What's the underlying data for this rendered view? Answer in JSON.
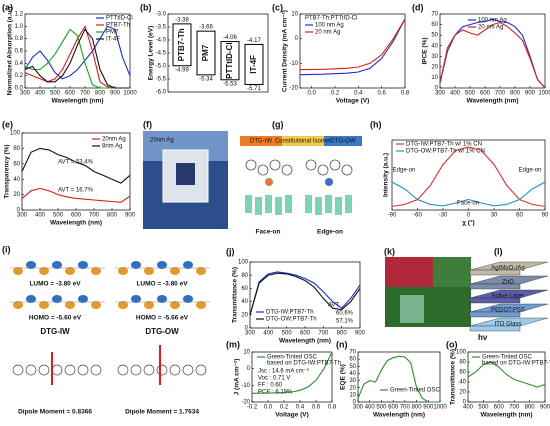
{
  "panels": [
    {
      "label": "(a)",
      "type": "line",
      "xlabel": "Wavelength (nm)",
      "ylabel": "Normalized Absorption (a.u.)",
      "xlim": [
        300,
        1000
      ],
      "ylim": [
        0,
        1.2
      ],
      "xticks": [
        300,
        400,
        500,
        600,
        700,
        800,
        900,
        1000
      ],
      "yticks": [
        {
          "value": 0,
          "label": "0.0"
        },
        0.2,
        0.4,
        0.6,
        0.8,
        {
          "value": 1,
          "label": "1.0"
        },
        1.2
      ],
      "x": [
        300,
        350,
        400,
        450,
        500,
        550,
        600,
        650,
        700,
        750,
        800,
        850,
        900,
        950,
        1000
      ],
      "series": [
        {
          "name": "PTTtID-Cl",
          "color": "#1a2bd6",
          "values": [
            0.3,
            0.5,
            0.6,
            0.45,
            0.25,
            0.15,
            0.2,
            0.3,
            0.45,
            0.6,
            0.8,
            1.0,
            0.95,
            0.5,
            0.2
          ]
        },
        {
          "name": "PTB7-Th",
          "color": "#e01b1b",
          "values": [
            0.25,
            0.2,
            0.15,
            0.1,
            0.15,
            0.3,
            0.55,
            0.8,
            1.0,
            0.6,
            0.1,
            0.02,
            0,
            0,
            0
          ]
        },
        {
          "name": "PM7",
          "color": "#1fa31f",
          "values": [
            0.35,
            0.3,
            0.3,
            0.4,
            0.55,
            0.75,
            0.95,
            0.85,
            0.4,
            0.05,
            0,
            0,
            0,
            0,
            0
          ]
        },
        {
          "name": "IT-4F",
          "color": "#111111",
          "values": [
            0.3,
            0.35,
            0.2,
            0.1,
            0.1,
            0.2,
            0.4,
            0.7,
            0.95,
            0.8,
            0.3,
            0.05,
            0,
            0,
            0
          ]
        }
      ]
    },
    {
      "label": "(b)",
      "type": "energy",
      "ylabel": "Energy Level (eV)",
      "ylim": [
        -6,
        -3
      ],
      "yticks": [
        {
          "value": -6,
          "label": "-6.0"
        },
        -5.5,
        {
          "value": -5,
          "label": "-5.0"
        },
        -4.5,
        {
          "value": -4,
          "label": "-4.0"
        },
        -3.5,
        {
          "value": -3,
          "label": "-3.0"
        }
      ],
      "materials": [
        {
          "name": "PTB7-Th",
          "color": "#111111",
          "lumo": -3.38,
          "homo": -4.99
        },
        {
          "name": "PM7",
          "color": "#1fa31f",
          "lumo": -3.66,
          "homo": -5.34
        },
        {
          "name": "PTTtID-Cl",
          "color": "#1a2bd6",
          "lumo": -4.06,
          "homo": -5.53
        },
        {
          "name": "IT-4F",
          "color": "#e01b1b",
          "lumo": -4.17,
          "homo": -5.71
        }
      ]
    },
    {
      "label": "(c)",
      "type": "line",
      "xlabel": "Voltage (V)",
      "ylabel": "Current Density (mA cm⁻²)",
      "xlim": [
        -0.1,
        0.8
      ],
      "ylim": [
        -20,
        10
      ],
      "xticks": [
        {
          "value": 0,
          "label": "0.0"
        },
        0.2,
        0.4,
        0.6,
        0.8
      ],
      "yticks": [
        -20,
        -10,
        0,
        10
      ],
      "legend_title": "PTB7-Th:PTTtID-Cl",
      "x": [
        -0.1,
        0,
        0.1,
        0.2,
        0.3,
        0.4,
        0.5,
        0.6,
        0.7,
        0.8
      ],
      "series": [
        {
          "name": "100 nm Ag",
          "color": "#1a2bd6",
          "values": [
            -14.6,
            -14.5,
            -14.4,
            -14.2,
            -14,
            -13.5,
            -12,
            -8,
            -1,
            8
          ]
        },
        {
          "name": "20 nm Ag",
          "color": "#e01b1b",
          "values": [
            -12.6,
            -12.5,
            -12.4,
            -12.2,
            -12,
            -11.5,
            -10,
            -6.5,
            0,
            8
          ]
        }
      ]
    },
    {
      "label": "(d)",
      "type": "line",
      "xlabel": "Wavelength (nm)",
      "ylabel": "IPCE (%)",
      "xlim": [
        300,
        1000
      ],
      "ylim": [
        0,
        70
      ],
      "xticks": [
        300,
        400,
        500,
        600,
        700,
        800,
        900,
        1000
      ],
      "yticks": [
        0,
        10,
        20,
        30,
        40,
        50,
        60,
        70
      ],
      "x": [
        300,
        350,
        400,
        450,
        500,
        550,
        600,
        650,
        700,
        750,
        800,
        850,
        900,
        950,
        1000
      ],
      "series": [
        {
          "name": "100 nm Ag",
          "color": "#1a2bd6",
          "values": [
            5,
            35,
            50,
            58,
            60,
            62,
            63,
            65,
            63,
            62,
            58,
            50,
            30,
            8,
            0
          ]
        },
        {
          "name": "20 nm Ag",
          "color": "#e01b1b",
          "values": [
            5,
            38,
            50,
            55,
            52,
            50,
            55,
            60,
            62,
            58,
            52,
            45,
            28,
            8,
            0
          ]
        }
      ]
    },
    {
      "label": "(e)",
      "type": "line",
      "xlabel": "Wavelength (nm)",
      "ylabel": "Transparency (%)",
      "xlim": [
        300,
        900
      ],
      "ylim": [
        0,
        100
      ],
      "xticks": [
        300,
        400,
        500,
        600,
        700,
        800,
        900
      ],
      "yticks": [
        0,
        20,
        40,
        60,
        80,
        100
      ],
      "x": [
        300,
        350,
        400,
        450,
        500,
        550,
        600,
        650,
        700,
        750,
        800,
        850,
        900
      ],
      "series": [
        {
          "name": "20nm Ag",
          "color": "#e01b1b",
          "values": [
            15,
            25,
            28,
            25,
            20,
            17,
            15,
            14,
            13,
            12,
            11,
            10,
            18
          ]
        },
        {
          "name": "8nm Ag",
          "color": "#111111",
          "values": [
            50,
            75,
            80,
            78,
            72,
            68,
            62,
            58,
            50,
            45,
            40,
            35,
            45
          ]
        }
      ],
      "annotations": [
        "AVT = 53.4%",
        "AVT = 16.7%"
      ]
    },
    {
      "label": "(f)",
      "type": "photo",
      "caption": "20nm Ag"
    },
    {
      "label": "(g)",
      "type": "diagram",
      "left": "DTG-IW",
      "middle": "Constitutional Isomer",
      "right": "DTG-OW",
      "left_bottom": "Face-on",
      "right_bottom": "Edge-on"
    },
    {
      "label": "(h)",
      "type": "line",
      "xlabel": "χ (°)",
      "ylabel": "Intensity (a.u.)",
      "xlim": [
        -90,
        90
      ],
      "ylim": [
        0,
        100
      ],
      "xticks": [
        -90,
        -60,
        -30,
        0,
        30,
        60,
        90
      ],
      "x": [
        -90,
        -75,
        -60,
        -45,
        -30,
        -15,
        0,
        15,
        30,
        45,
        60,
        75,
        90
      ],
      "series": [
        {
          "name": "DTG-IW:PTB7-Th w/ 1% CN",
          "color": "#e0303a",
          "values": [
            5,
            8,
            15,
            35,
            65,
            85,
            90,
            85,
            65,
            35,
            15,
            8,
            5
          ]
        },
        {
          "name": "DTG-OW:PTB7-Th w/ 1% CN",
          "color": "#2a8fc8",
          "values": [
            40,
            30,
            15,
            8,
            6,
            10,
            15,
            10,
            6,
            8,
            15,
            30,
            40
          ]
        }
      ],
      "annotations": [
        "Edge-on",
        "Face-on",
        "Edge-on"
      ]
    },
    {
      "label": "(i)",
      "type": "orbitals",
      "lumo_left": "LUMO = -3.80 eV",
      "lumo_right": "LUMO = -3.80 eV",
      "homo_left": "HOMO = -5.60 eV",
      "homo_right": "HOMO = -5.66 eV",
      "name_left": "DTG-IW",
      "name_right": "DTG-OW",
      "dipole_left": "Dipole Moment = 0.8366",
      "dipole_right": "Dipole Moment = 1.7634"
    },
    {
      "label": "(j)",
      "type": "line",
      "xlabel": "Wavelength (nm)",
      "ylabel": "Transmittance (%)",
      "xlim": [
        300,
        900
      ],
      "ylim": [
        0,
        100
      ],
      "xticks": [
        300,
        400,
        500,
        600,
        700,
        800,
        900
      ],
      "yticks": [
        0,
        20,
        40,
        60,
        80,
        100
      ],
      "x": [
        300,
        350,
        400,
        450,
        500,
        550,
        600,
        650,
        700,
        750,
        800,
        850,
        900
      ],
      "series": [
        {
          "name": "DTG-IW:PTB7-Th",
          "color": "#1a2bd6",
          "values": [
            20,
            70,
            82,
            85,
            83,
            80,
            75,
            68,
            55,
            40,
            30,
            45,
            65
          ]
        },
        {
          "name": "DTG-OW:PTB7-Th",
          "color": "#111111",
          "values": [
            20,
            68,
            80,
            83,
            82,
            78,
            72,
            62,
            45,
            30,
            28,
            40,
            60
          ]
        }
      ],
      "annotations": [
        "AVT",
        "60.6%",
        "57.1%"
      ]
    },
    {
      "label": "(k)",
      "type": "photos"
    },
    {
      "label": "(l)",
      "type": "stack",
      "layers": [
        "Ag/MoO₃/Ag",
        "ZnO",
        "Active Layer",
        "PEDOT:PSS",
        "ITO Glass"
      ],
      "light": "hν"
    },
    {
      "label": "(m)",
      "type": "line",
      "xlabel": "Voltage (V)",
      "ylabel": "J (mA cm⁻²)",
      "xlim": [
        -0.2,
        0.8
      ],
      "ylim": [
        -20,
        10
      ],
      "xticks": [
        -0.2,
        {
          "value": 0,
          "label": "0.0"
        },
        0.2,
        0.4,
        0.6,
        0.8
      ],
      "yticks": [
        -20,
        -10,
        0,
        10
      ],
      "x": [
        -0.2,
        -0.1,
        0,
        0.1,
        0.2,
        0.3,
        0.4,
        0.5,
        0.6,
        0.7,
        0.8
      ],
      "series": [
        {
          "name": "Green-Tinted OSC",
          "color": "#2f8f2f",
          "values": [
            -14.8,
            -14.7,
            -14.6,
            -14.5,
            -14.3,
            -14,
            -13,
            -11,
            -7,
            0,
            10
          ]
        }
      ],
      "legend_note": "based on DTG-IW:PTB7-Th",
      "annotations": [
        "Jsc : 14.6 mA cm⁻²",
        "Voc : 0.71 V",
        "FF : 0.60",
        "PCE : 6.19%"
      ]
    },
    {
      "label": "(n)",
      "type": "line",
      "xlabel": "Wavelength (nm)",
      "ylabel": "EQE (%)",
      "xlim": [
        300,
        1000
      ],
      "ylim": [
        0,
        70
      ],
      "xticks": [
        300,
        400,
        500,
        600,
        700,
        800,
        900,
        1000
      ],
      "yticks": [
        0,
        10,
        20,
        30,
        40,
        50,
        60,
        70
      ],
      "x": [
        300,
        350,
        400,
        450,
        500,
        550,
        600,
        650,
        700,
        750,
        800,
        850,
        900,
        950,
        1000
      ],
      "series": [
        {
          "name": "Green-Tinted OSC",
          "color": "#2f8f2f",
          "values": [
            5,
            25,
            30,
            28,
            45,
            58,
            62,
            64,
            63,
            55,
            20,
            5,
            0,
            0,
            0
          ]
        }
      ]
    },
    {
      "label": "(o)",
      "type": "line",
      "xlabel": "Wavelength (nm)",
      "ylabel": "Transmittance (%)",
      "xlim": [
        400,
        900
      ],
      "ylim": [
        0,
        100
      ],
      "xticks": [
        400,
        500,
        600,
        700,
        800,
        900
      ],
      "yticks": [
        0,
        20,
        40,
        60,
        80,
        100
      ],
      "x": [
        400,
        450,
        500,
        550,
        600,
        650,
        700,
        750,
        800,
        850,
        900
      ],
      "series": [
        {
          "name": "Green-Tinted OSC",
          "color": "#2f8f2f",
          "values": [
            50,
            60,
            75,
            80,
            70,
            55,
            45,
            40,
            35,
            30,
            35
          ]
        }
      ],
      "legend_note": "based on DTG-IW:PTB7-Th"
    }
  ]
}
